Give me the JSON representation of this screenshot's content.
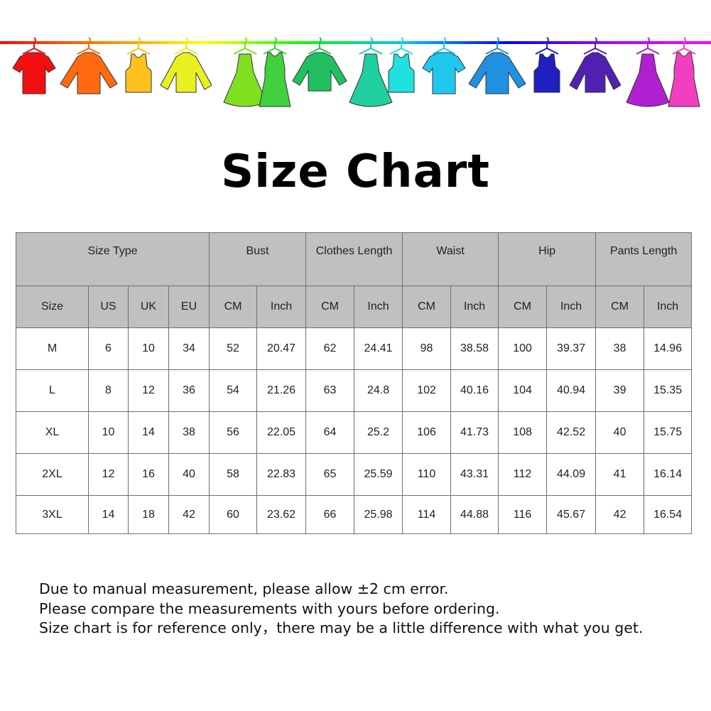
{
  "banner": {
    "line_colors": [
      "#ff0000",
      "#ff8000",
      "#ffff00",
      "#00ff00",
      "#00c0ff",
      "#0000ff",
      "#a000ff",
      "#ff00ff"
    ],
    "items": [
      {
        "type": "tshirt",
        "color": "#f01010"
      },
      {
        "type": "shirt",
        "color": "#ff6a10"
      },
      {
        "type": "tank",
        "color": "#ffc020"
      },
      {
        "type": "sweater",
        "color": "#e8f020"
      },
      {
        "type": "dress",
        "color": "#80e020"
      },
      {
        "type": "tankdress",
        "color": "#40d040"
      },
      {
        "type": "longsleeve",
        "color": "#20c060"
      },
      {
        "type": "dress",
        "color": "#20d0a0"
      },
      {
        "type": "tank",
        "color": "#20e0e0"
      },
      {
        "type": "tshirt",
        "color": "#20c8f0"
      },
      {
        "type": "shirt",
        "color": "#2090e0"
      },
      {
        "type": "tank",
        "color": "#2020c0"
      },
      {
        "type": "sweater",
        "color": "#5020b0"
      },
      {
        "type": "dress",
        "color": "#b020d0"
      },
      {
        "type": "tankdress",
        "color": "#f040c0"
      }
    ]
  },
  "title": "Size Chart",
  "table": {
    "groups": [
      {
        "label": "Size Type",
        "span": 4
      },
      {
        "label": "Bust",
        "span": 2
      },
      {
        "label": "Clothes Length",
        "span": 2
      },
      {
        "label": "Waist",
        "span": 2
      },
      {
        "label": "Hip",
        "span": 2
      },
      {
        "label": "Pants Length",
        "span": 2
      }
    ],
    "columns": [
      "Size",
      "US",
      "UK",
      "EU",
      "CM",
      "Inch",
      "CM",
      "Inch",
      "CM",
      "Inch",
      "CM",
      "Inch",
      "CM",
      "Inch"
    ],
    "rows": [
      [
        "M",
        "6",
        "10",
        "34",
        "52",
        "20.47",
        "62",
        "24.41",
        "98",
        "38.58",
        "100",
        "39.37",
        "38",
        "14.96"
      ],
      [
        "L",
        "8",
        "12",
        "36",
        "54",
        "21.26",
        "63",
        "24.8",
        "102",
        "40.16",
        "104",
        "40.94",
        "39",
        "15.35"
      ],
      [
        "XL",
        "10",
        "14",
        "38",
        "56",
        "22.05",
        "64",
        "25.2",
        "106",
        "41.73",
        "108",
        "42.52",
        "40",
        "15.75"
      ],
      [
        "2XL",
        "12",
        "16",
        "40",
        "58",
        "22.83",
        "65",
        "25.59",
        "110",
        "43.31",
        "112",
        "44.09",
        "41",
        "16.14"
      ],
      [
        "3XL",
        "14",
        "18",
        "42",
        "60",
        "23.62",
        "66",
        "25.98",
        "114",
        "44.88",
        "116",
        "45.67",
        "42",
        "16.54"
      ]
    ]
  },
  "notes": [
    "Due to manual measurement, please allow ±2 cm error.",
    "Please compare the measurements with yours before ordering.",
    "Size chart is for reference only，there may be a little difference with what you get."
  ]
}
